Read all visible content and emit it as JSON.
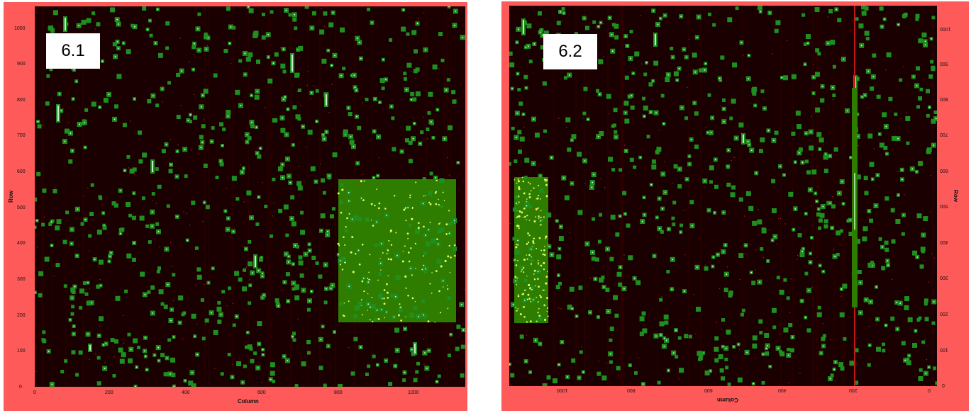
{
  "panels": [
    {
      "label": "6.1",
      "xlabel": "Column",
      "ylabel": "Row",
      "xticks": [
        "0",
        "200",
        "400",
        "600",
        "800",
        "1000"
      ],
      "yticks": [
        "0",
        "100",
        "200",
        "300",
        "400",
        "500",
        "600",
        "700",
        "800",
        "900",
        "1000"
      ],
      "colors": {
        "frame": "#ff5a5a",
        "background": "#1a0000",
        "source": "#1f8f1f",
        "highlight": "#2e7d00"
      }
    },
    {
      "label": "6.2",
      "xlabel": "Column",
      "ylabel": "Row",
      "xticks": [
        "1000",
        "800",
        "600",
        "400",
        "200",
        "0"
      ],
      "yticks": [
        "0",
        "100",
        "200",
        "300",
        "400",
        "500",
        "600",
        "700",
        "800",
        "900",
        "1000"
      ],
      "colors": {
        "frame": "#ff5a5a",
        "background": "#1a0000",
        "source": "#1f8f1f",
        "highlight": "#2e7d00"
      }
    }
  ]
}
